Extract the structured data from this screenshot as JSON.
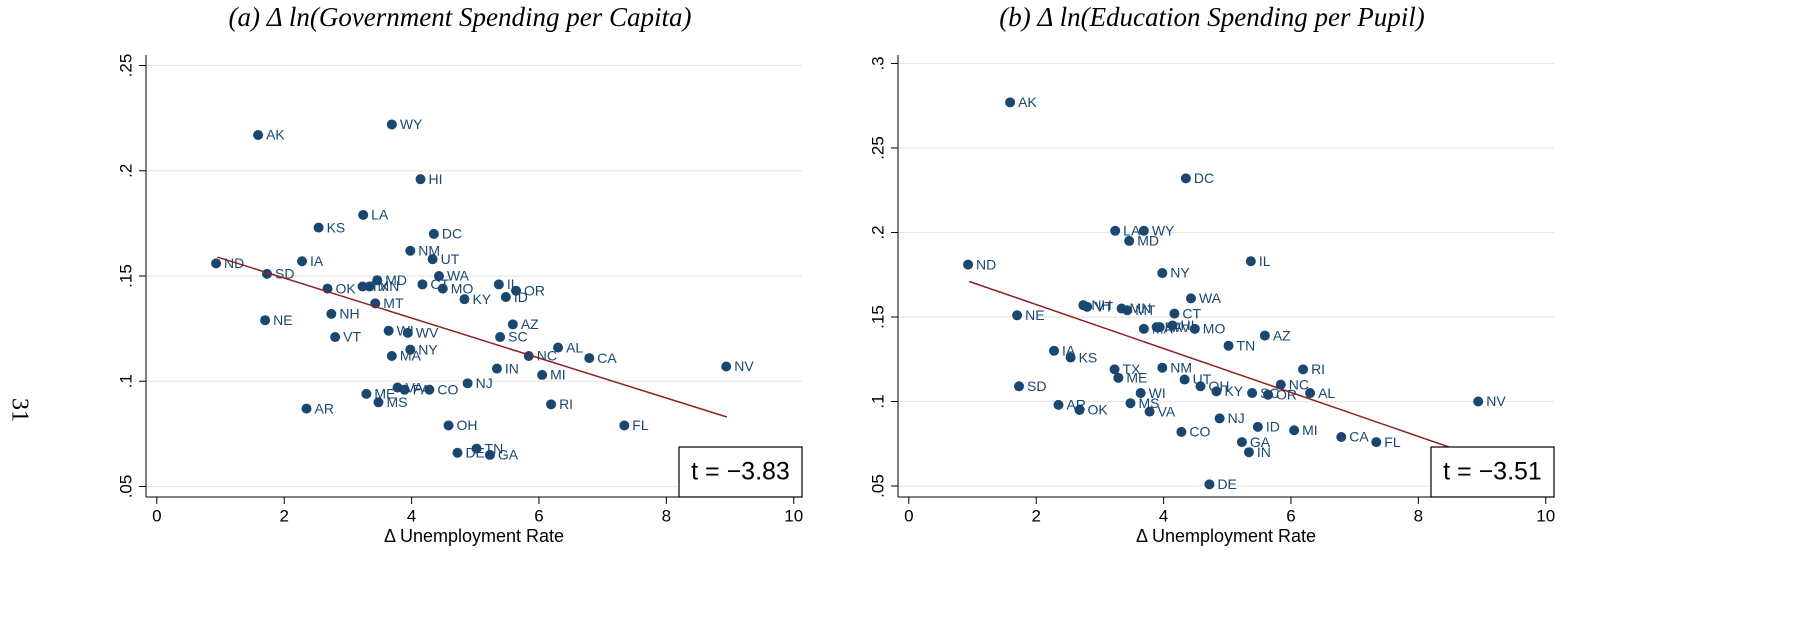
{
  "page_number": "31",
  "chart_data": [
    {
      "type": "scatter",
      "title": "(a) Δ ln(Government Spending per Capita)",
      "x_label": "Δ Unemployment Rate",
      "annotation": "t = −3.83",
      "color": "#1a476f",
      "grid": true,
      "xlim": [
        -0.17,
        10.13
      ],
      "xticks": [
        0,
        2,
        4,
        6,
        8,
        10
      ],
      "ylim": [
        0.045,
        0.255
      ],
      "yticks": [
        {
          "value": 0.05,
          "label": ".05"
        },
        {
          "value": 0.1,
          "label": ".1"
        },
        {
          "value": 0.15,
          "label": ".15"
        },
        {
          "value": 0.2,
          "label": ".2"
        },
        {
          "value": 0.25,
          "label": ".25"
        }
      ],
      "point_labels": [
        "ND",
        "AK",
        "WY",
        "HI",
        "LA",
        "KS",
        "DC",
        "IA",
        "NM",
        "UT",
        "SD",
        "WA",
        "MD",
        "IL",
        "OK",
        "TX",
        "MN",
        "CT",
        "MO",
        "OR",
        "KY",
        "ID",
        "MT",
        "NE",
        "NH",
        "AZ",
        "VT",
        "WI",
        "WV",
        "SC",
        "AL",
        "NY",
        "MA",
        "NC",
        "CA",
        "NV",
        "IN",
        "MI",
        "NJ",
        "ME",
        "VA",
        "PA",
        "CO",
        "MS",
        "RI",
        "AR",
        "FL",
        "OH",
        "TN",
        "DE",
        "GA"
      ],
      "x": [
        0.93,
        1.59,
        3.69,
        4.14,
        3.24,
        2.54,
        4.35,
        2.28,
        3.98,
        4.33,
        1.73,
        4.43,
        3.46,
        5.37,
        2.68,
        3.23,
        3.34,
        4.17,
        4.49,
        5.64,
        4.83,
        5.48,
        3.43,
        1.7,
        2.74,
        5.59,
        2.8,
        3.64,
        3.94,
        5.39,
        6.3,
        3.98,
        3.69,
        5.84,
        6.79,
        8.94,
        5.34,
        6.05,
        4.88,
        3.29,
        3.78,
        3.89,
        4.28,
        3.48,
        6.19,
        2.35,
        7.34,
        4.58,
        5.02,
        4.72,
        5.23
      ],
      "values": [
        0.156,
        0.217,
        0.222,
        0.196,
        0.179,
        0.173,
        0.17,
        0.157,
        0.162,
        0.158,
        0.151,
        0.15,
        0.148,
        0.146,
        0.144,
        0.145,
        0.145,
        0.146,
        0.144,
        0.143,
        0.139,
        0.14,
        0.137,
        0.129,
        0.132,
        0.127,
        0.121,
        0.124,
        0.123,
        0.121,
        0.116,
        0.115,
        0.112,
        0.112,
        0.111,
        0.107,
        0.106,
        0.103,
        0.099,
        0.094,
        0.097,
        0.096,
        0.096,
        0.09,
        0.089,
        0.087,
        0.079,
        0.079,
        0.068,
        0.066,
        0.065
      ],
      "fit": {
        "color": "#8b2323",
        "x": [
          0.95,
          8.95
        ],
        "values": [
          0.159,
          0.083
        ]
      }
    },
    {
      "type": "scatter",
      "title": "(b) Δ ln(Education Spending per Pupil)",
      "x_label": "Δ Unemployment Rate",
      "annotation": "t = −3.51",
      "color": "#1a476f",
      "grid": true,
      "xlim": [
        -0.17,
        10.13
      ],
      "xticks": [
        0,
        2,
        4,
        6,
        8,
        10
      ],
      "ylim": [
        0.0435,
        0.305
      ],
      "yticks": [
        {
          "value": 0.05,
          "label": ".05"
        },
        {
          "value": 0.1,
          "label": ".1"
        },
        {
          "value": 0.15,
          "label": ".15"
        },
        {
          "value": 0.2,
          "label": ".2"
        },
        {
          "value": 0.25,
          "label": ".25"
        },
        {
          "value": 0.3,
          "label": ".3"
        }
      ],
      "point_labels": [
        "ND",
        "AK",
        "WY",
        "HI",
        "LA",
        "KS",
        "DC",
        "IA",
        "NM",
        "UT",
        "SD",
        "WA",
        "MD",
        "IL",
        "OK",
        "TX",
        "MN",
        "CT",
        "MO",
        "OR",
        "KY",
        "ID",
        "MT",
        "NE",
        "NH",
        "AZ",
        "VT",
        "WI",
        "WV",
        "SC",
        "AL",
        "NY",
        "MA",
        "NC",
        "CA",
        "NV",
        "IN",
        "MI",
        "NJ",
        "ME",
        "VA",
        "PA",
        "CO",
        "MS",
        "RI",
        "AR",
        "FL",
        "OH",
        "TN",
        "DE",
        "GA"
      ],
      "x": [
        0.93,
        1.59,
        3.69,
        4.14,
        3.24,
        2.54,
        4.35,
        2.28,
        3.98,
        4.33,
        1.73,
        4.43,
        3.46,
        5.37,
        2.68,
        3.23,
        3.34,
        4.17,
        4.49,
        5.64,
        4.83,
        5.48,
        3.43,
        1.7,
        2.74,
        5.59,
        2.8,
        3.64,
        3.94,
        5.39,
        6.3,
        3.98,
        3.69,
        5.84,
        6.79,
        8.94,
        5.34,
        6.05,
        4.88,
        3.29,
        3.78,
        3.89,
        4.28,
        3.48,
        6.19,
        2.35,
        7.34,
        4.58,
        5.02,
        4.72,
        5.23
      ],
      "values": [
        0.181,
        0.277,
        0.201,
        0.145,
        0.201,
        0.126,
        0.232,
        0.13,
        0.12,
        0.113,
        0.109,
        0.161,
        0.195,
        0.183,
        0.095,
        0.119,
        0.155,
        0.152,
        0.143,
        0.104,
        0.106,
        0.085,
        0.154,
        0.151,
        0.157,
        0.139,
        0.156,
        0.105,
        0.144,
        0.105,
        0.105,
        0.176,
        0.143,
        0.11,
        0.079,
        0.1,
        0.07,
        0.083,
        0.09,
        0.114,
        0.094,
        0.144,
        0.082,
        0.099,
        0.119,
        0.098,
        0.076,
        0.109,
        0.133,
        0.051,
        0.076
      ],
      "fit": {
        "color": "#8b2323",
        "x": [
          0.95,
          8.95
        ],
        "values": [
          0.171,
          0.067
        ]
      }
    }
  ]
}
